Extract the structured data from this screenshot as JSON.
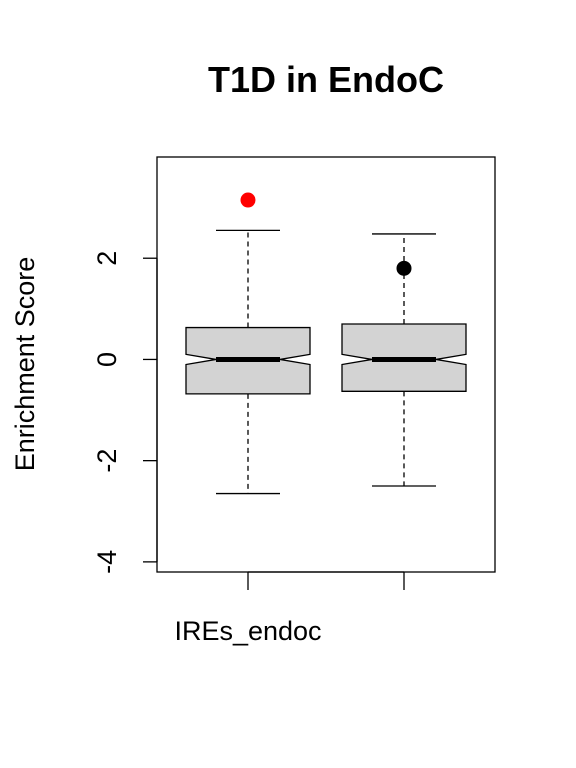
{
  "chart_data": {
    "type": "boxplot",
    "title": "T1D in EndoC",
    "xlabel": "",
    "ylabel": "Enrichment Score",
    "ylim": [
      -4.2,
      4.0
    ],
    "yticks": [
      -4,
      -2,
      0,
      2
    ],
    "ytick_labels": [
      "-4",
      "-2",
      "0",
      "2"
    ],
    "notched": true,
    "grid": false,
    "categories": [
      "IREs_endoc",
      ""
    ],
    "series": [
      {
        "whisker_low": -2.65,
        "q1": -0.68,
        "median": 0.0,
        "q3": 0.63,
        "whisker_high": 2.55,
        "notch_low": -0.1,
        "notch_high": 0.1,
        "outliers": [
          {
            "value": 3.15,
            "color": "#ff0000"
          }
        ]
      },
      {
        "whisker_low": -2.5,
        "q1": -0.63,
        "median": 0.0,
        "q3": 0.7,
        "whisker_high": 2.48,
        "notch_low": -0.1,
        "notch_high": 0.1,
        "outliers": [
          {
            "value": 1.8,
            "color": "#000000"
          }
        ]
      }
    ],
    "colors": {
      "box_fill": "#d3d3d3",
      "stroke": "#000000"
    }
  }
}
